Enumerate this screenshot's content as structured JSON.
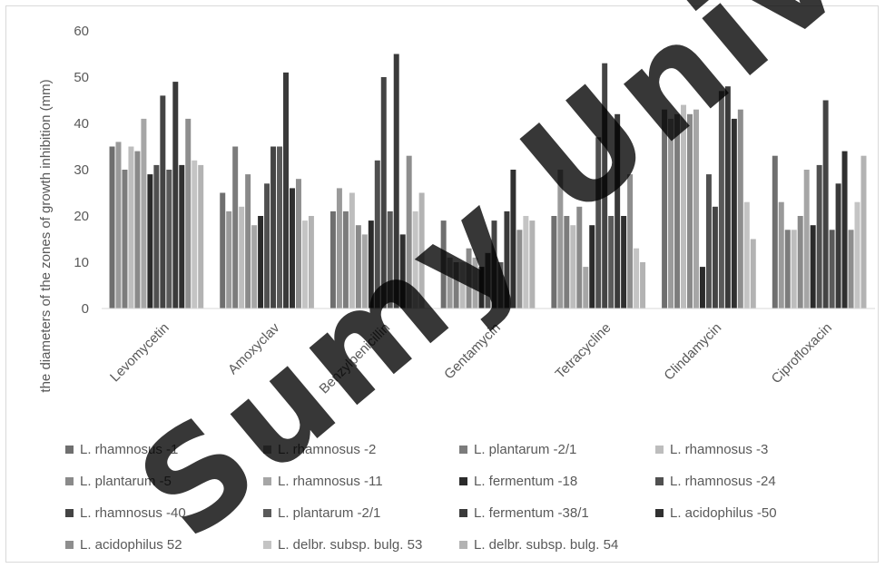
{
  "chart_data": {
    "type": "bar",
    "title": "",
    "xlabel": "",
    "ylabel": "the diameters of the zones of growth inhibition (mm)",
    "ylim": [
      0,
      60
    ],
    "yticks": [
      0,
      10,
      20,
      30,
      40,
      50,
      60
    ],
    "grid": false,
    "legend_position": "bottom",
    "categories": [
      "Levomycetin",
      "Amoxyclav",
      "Benzylpenicillin",
      "Gentamycin",
      "Tetracycline",
      "Clindamycin",
      "Ciprofloxacin"
    ],
    "series": [
      {
        "name": "L. rhamnosus -1",
        "color": "#6f6f6f",
        "values": [
          35,
          25,
          21,
          19,
          20,
          43,
          33
        ]
      },
      {
        "name": "L. rhamnosus -2",
        "color": "#9a9a9a",
        "values": [
          36,
          21,
          26,
          11,
          30,
          41,
          23
        ]
      },
      {
        "name": "L. plantarum -2/1",
        "color": "#7c7c7c",
        "values": [
          30,
          35,
          21,
          10,
          20,
          42,
          17
        ]
      },
      {
        "name": "L. rhamnosus -3",
        "color": "#bdbdbd",
        "values": [
          35,
          22,
          25,
          10,
          18,
          44,
          17
        ]
      },
      {
        "name": "L. plantarum -5",
        "color": "#8a8a8a",
        "values": [
          34,
          29,
          18,
          13,
          22,
          42,
          20
        ]
      },
      {
        "name": "L. rhamnosus -11",
        "color": "#a6a6a6",
        "values": [
          41,
          18,
          16,
          11,
          9,
          43,
          30
        ]
      },
      {
        "name": "L. fermentum -18",
        "color": "#2b2b2b",
        "values": [
          29,
          20,
          19,
          9,
          18,
          9,
          18
        ]
      },
      {
        "name": "L. rhamnosus -24",
        "color": "#505050",
        "values": [
          31,
          27,
          32,
          12,
          37,
          29,
          31
        ]
      },
      {
        "name": "L. rhamnosus -40",
        "color": "#444444",
        "values": [
          46,
          35,
          50,
          19,
          53,
          22,
          45
        ]
      },
      {
        "name": "L. plantarum -2/1",
        "color": "#5a5a5a",
        "values": [
          30,
          35,
          21,
          10,
          20,
          47,
          17
        ]
      },
      {
        "name": "L. fermentum -38/1",
        "color": "#3a3a3a",
        "values": [
          49,
          51,
          55,
          21,
          42,
          48,
          27
        ]
      },
      {
        "name": "L. acidophilus -50",
        "color": "#303030",
        "values": [
          31,
          26,
          16,
          30,
          20,
          41,
          34
        ]
      },
      {
        "name": "L. acidophilus  52",
        "color": "#8e8e8e",
        "values": [
          41,
          28,
          33,
          17,
          29,
          43,
          17
        ]
      },
      {
        "name": "L. delbr. subsp. bulg.  53",
        "color": "#c4c4c4",
        "values": [
          32,
          19,
          21,
          20,
          13,
          23,
          23
        ]
      },
      {
        "name": "L. delbr. subsp. bulg. 54",
        "color": "#b3b3b3",
        "values": [
          31,
          20,
          25,
          19,
          10,
          15,
          33
        ]
      }
    ]
  },
  "watermark": "Sumy University"
}
